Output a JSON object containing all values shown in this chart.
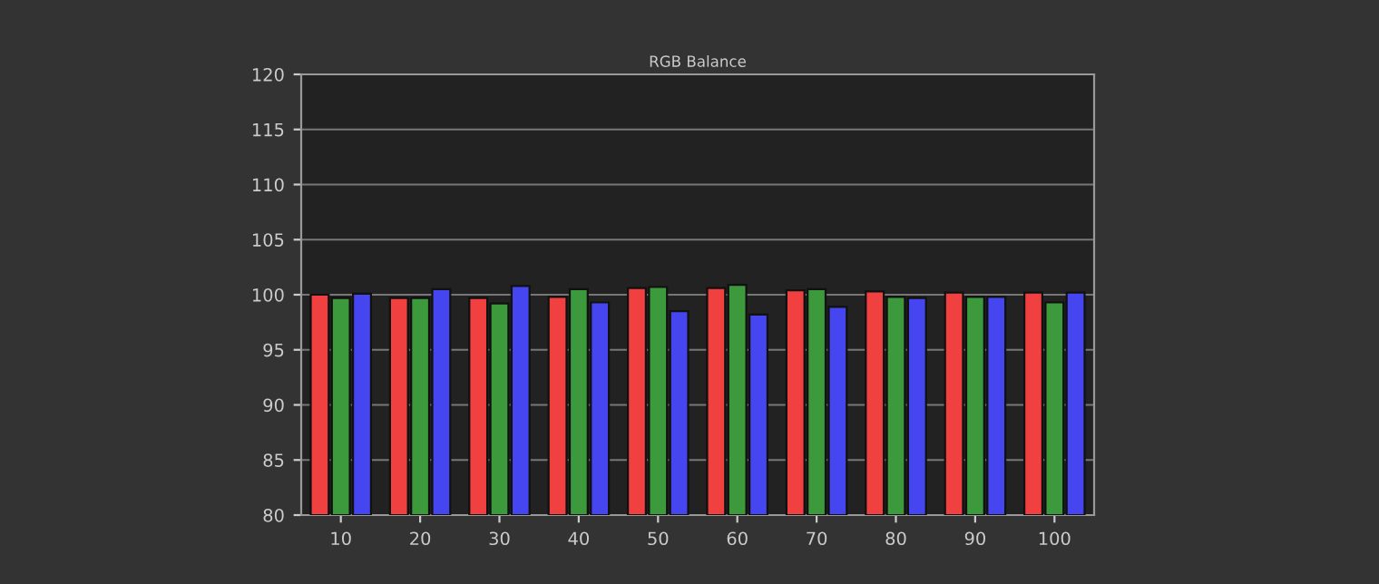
{
  "chart_data": {
    "type": "bar",
    "title": "RGB Balance",
    "categories": [
      "10",
      "20",
      "30",
      "40",
      "50",
      "60",
      "70",
      "80",
      "90",
      "100"
    ],
    "series": [
      {
        "color": "#f04040",
        "values": [
          100.0,
          99.7,
          99.7,
          99.8,
          100.6,
          100.6,
          100.4,
          100.3,
          100.2,
          100.2
        ]
      },
      {
        "color": "#3c9a3c",
        "values": [
          99.7,
          99.7,
          99.2,
          100.5,
          100.7,
          100.9,
          100.5,
          99.8,
          99.8,
          99.3
        ]
      },
      {
        "color": "#4646f0",
        "values": [
          100.1,
          100.5,
          100.8,
          99.3,
          98.5,
          98.2,
          98.9,
          99.7,
          99.8,
          100.2
        ]
      }
    ],
    "ylim": [
      80,
      120
    ],
    "yticks": [
      80,
      85,
      90,
      95,
      100,
      105,
      110,
      115,
      120
    ],
    "grid": "y"
  }
}
